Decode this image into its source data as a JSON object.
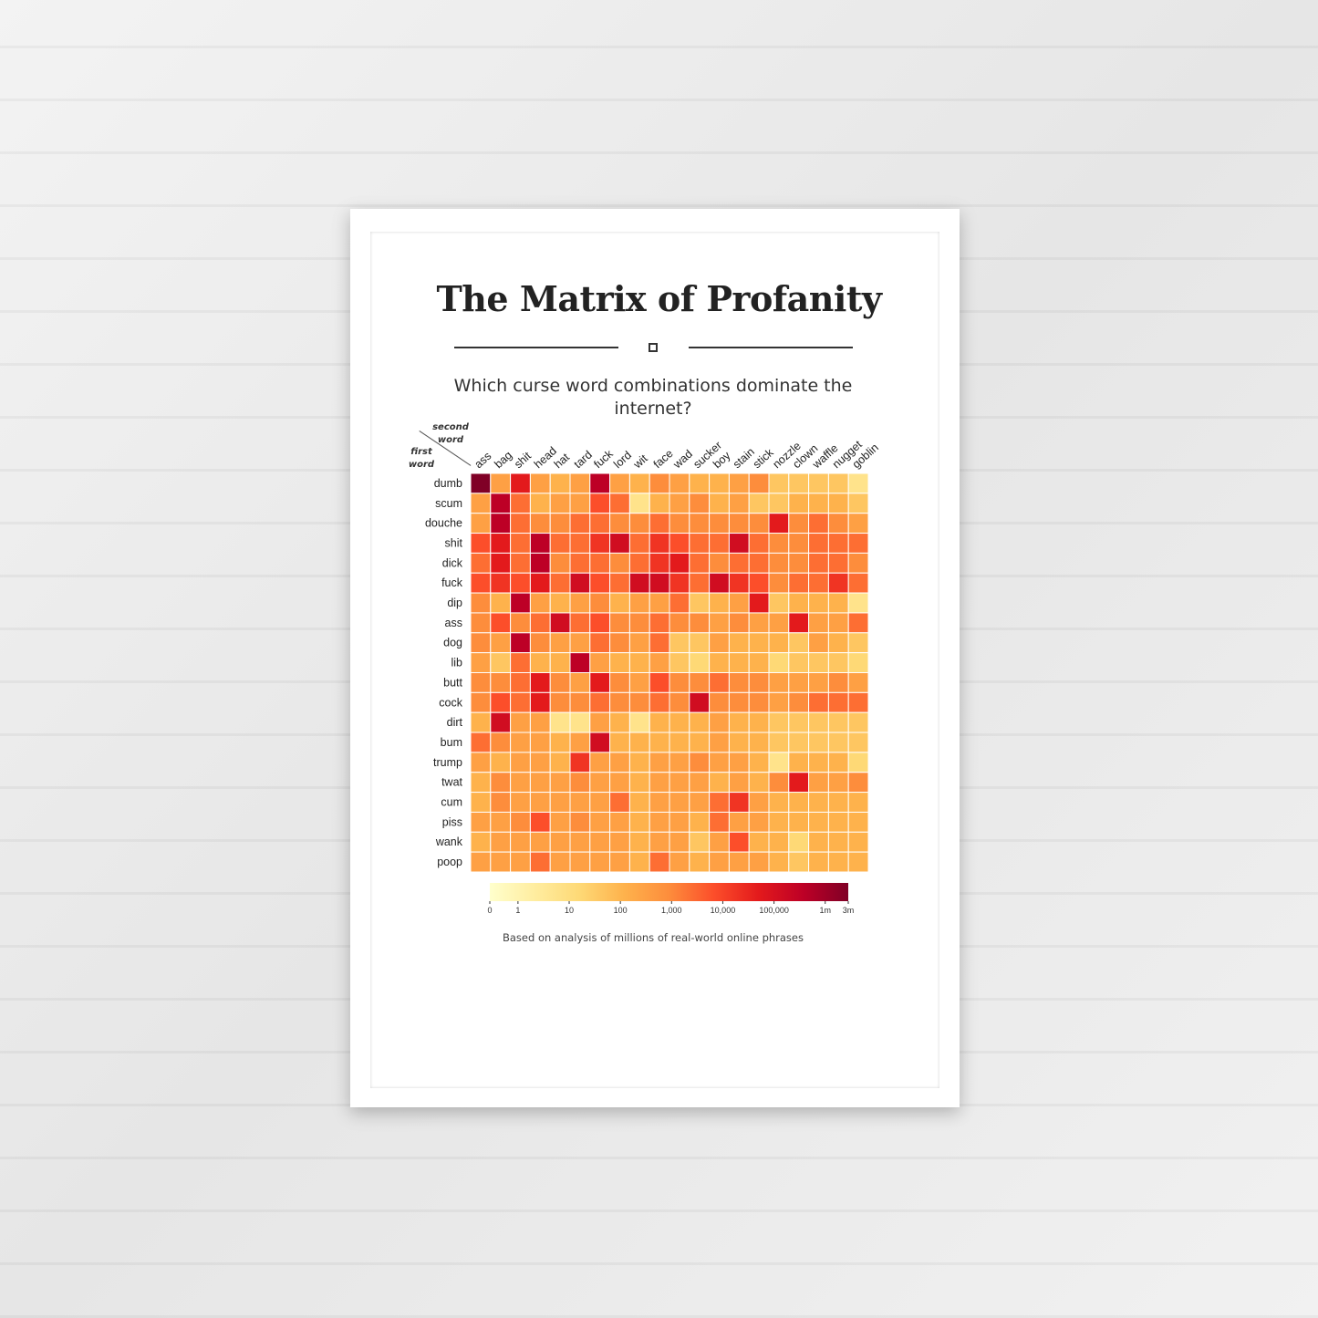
{
  "title": "The Matrix of Profanity",
  "subtitle": "Which curse word combinations dominate the internet?",
  "source_note": "Based on analysis of millions of real-world online phrases",
  "chart_data": {
    "type": "heatmap",
    "corner_label_columns": "second word",
    "corner_label_rows": "first word",
    "columns": [
      "ass",
      "bag",
      "shit",
      "head",
      "hat",
      "tard",
      "fuck",
      "lord",
      "wit",
      "face",
      "wad",
      "sucker",
      "boy",
      "stain",
      "stick",
      "nozzle",
      "clown",
      "waffle",
      "nugget",
      "goblin"
    ],
    "rows": [
      "dumb",
      "scum",
      "douche",
      "shit",
      "dick",
      "fuck",
      "dip",
      "ass",
      "dog",
      "lib",
      "butt",
      "cock",
      "dirt",
      "bum",
      "trump",
      "twat",
      "cum",
      "piss",
      "wank",
      "poop"
    ],
    "value_scale": "log",
    "level_scale": "0-8 (level index along the color legend)",
    "levels": [
      [
        8.0,
        3.5,
        6.0,
        3.5,
        3.0,
        3.5,
        7.0,
        3.5,
        3.0,
        4.0,
        3.5,
        3.0,
        3.0,
        3.5,
        4.0,
        2.5,
        2.5,
        2.5,
        2.5,
        1.5
      ],
      [
        3.5,
        7.0,
        4.5,
        3.0,
        3.5,
        3.5,
        5.0,
        4.5,
        1.5,
        3.0,
        3.5,
        4.0,
        3.0,
        3.5,
        2.5,
        2.5,
        3.0,
        3.0,
        3.0,
        2.5
      ],
      [
        3.5,
        7.0,
        4.5,
        4.0,
        4.0,
        4.5,
        4.5,
        4.0,
        4.0,
        4.5,
        4.0,
        4.0,
        4.0,
        4.0,
        4.0,
        6.0,
        4.0,
        4.5,
        4.0,
        3.5
      ],
      [
        5.0,
        6.0,
        4.5,
        7.0,
        4.5,
        4.5,
        5.5,
        6.5,
        4.5,
        5.5,
        5.0,
        4.5,
        4.5,
        6.5,
        4.5,
        4.0,
        4.0,
        4.5,
        4.5,
        4.5
      ],
      [
        4.5,
        6.0,
        4.5,
        7.0,
        4.0,
        4.5,
        4.5,
        4.0,
        4.5,
        5.5,
        6.0,
        4.5,
        4.0,
        4.5,
        4.5,
        4.0,
        4.0,
        4.5,
        4.5,
        4.0
      ],
      [
        5.0,
        5.5,
        5.0,
        6.0,
        4.5,
        6.5,
        5.0,
        4.5,
        6.5,
        6.5,
        5.5,
        4.5,
        6.5,
        5.5,
        5.0,
        4.0,
        4.5,
        4.5,
        5.5,
        4.5
      ],
      [
        4.0,
        3.0,
        7.0,
        3.5,
        3.0,
        3.5,
        4.0,
        3.0,
        3.5,
        3.5,
        4.5,
        2.5,
        3.0,
        3.5,
        6.0,
        2.5,
        3.0,
        3.0,
        3.0,
        1.5
      ],
      [
        4.0,
        5.0,
        4.0,
        4.5,
        6.5,
        4.5,
        5.0,
        4.0,
        4.0,
        4.5,
        4.0,
        4.0,
        3.5,
        4.0,
        3.5,
        3.5,
        6.0,
        3.5,
        3.5,
        4.5
      ],
      [
        4.0,
        3.5,
        7.0,
        4.0,
        3.5,
        3.5,
        4.5,
        4.0,
        3.5,
        4.5,
        2.5,
        2.5,
        3.5,
        3.0,
        3.0,
        3.0,
        2.5,
        3.5,
        3.0,
        2.5
      ],
      [
        3.5,
        2.5,
        4.5,
        3.0,
        3.0,
        7.0,
        3.5,
        3.0,
        3.0,
        3.5,
        2.5,
        2.0,
        3.0,
        3.0,
        3.0,
        2.0,
        2.5,
        2.5,
        2.5,
        2.0
      ],
      [
        4.0,
        4.0,
        4.5,
        6.0,
        4.0,
        3.5,
        6.0,
        4.0,
        3.5,
        5.0,
        4.0,
        4.0,
        4.5,
        4.0,
        4.0,
        3.5,
        3.5,
        3.5,
        4.0,
        3.5
      ],
      [
        4.0,
        5.0,
        4.5,
        6.0,
        4.0,
        4.0,
        4.5,
        4.0,
        4.0,
        4.5,
        4.0,
        6.5,
        4.0,
        4.0,
        4.0,
        3.5,
        4.0,
        4.5,
        4.5,
        4.5
      ],
      [
        3.0,
        6.5,
        3.5,
        3.5,
        1.5,
        1.5,
        3.5,
        3.0,
        1.5,
        3.0,
        3.0,
        3.0,
        3.5,
        3.0,
        3.0,
        2.5,
        2.5,
        2.5,
        2.5,
        2.5
      ],
      [
        4.5,
        4.0,
        3.5,
        3.5,
        3.0,
        3.5,
        6.5,
        3.0,
        3.0,
        3.0,
        3.0,
        3.0,
        3.5,
        3.0,
        3.0,
        2.5,
        2.5,
        2.5,
        2.5,
        2.5
      ],
      [
        3.5,
        3.0,
        3.5,
        3.5,
        3.0,
        5.5,
        3.5,
        3.5,
        3.0,
        3.5,
        3.5,
        4.0,
        3.5,
        3.5,
        3.0,
        1.5,
        3.0,
        3.0,
        3.0,
        2.0
      ],
      [
        3.0,
        4.0,
        3.5,
        3.5,
        3.5,
        4.0,
        3.5,
        3.5,
        3.0,
        3.5,
        3.5,
        3.5,
        3.0,
        3.5,
        3.0,
        4.0,
        6.0,
        3.5,
        3.5,
        4.0
      ],
      [
        3.0,
        4.0,
        3.5,
        3.5,
        3.5,
        3.5,
        3.5,
        4.5,
        3.0,
        3.5,
        3.5,
        3.5,
        4.5,
        5.5,
        3.5,
        3.0,
        3.0,
        3.0,
        3.0,
        3.0
      ],
      [
        3.5,
        3.5,
        4.0,
        5.0,
        3.5,
        4.0,
        3.5,
        3.5,
        3.0,
        3.5,
        3.5,
        3.0,
        4.5,
        3.5,
        3.5,
        3.0,
        3.0,
        3.0,
        3.0,
        3.0
      ],
      [
        3.0,
        3.5,
        3.5,
        3.5,
        3.5,
        3.5,
        3.5,
        3.5,
        3.0,
        3.5,
        3.5,
        2.5,
        3.5,
        5.0,
        3.0,
        3.0,
        2.0,
        3.0,
        3.0,
        3.0
      ],
      [
        3.5,
        3.5,
        3.5,
        4.5,
        3.5,
        3.5,
        3.5,
        3.5,
        3.0,
        4.5,
        3.5,
        3.0,
        3.5,
        3.5,
        3.5,
        3.0,
        2.5,
        3.0,
        3.0,
        3.0
      ]
    ],
    "legend": {
      "ticks": [
        "0",
        "1",
        "10",
        "100",
        "1,000",
        "10,000",
        "100,000",
        "1m",
        "3m"
      ],
      "tick_levels": [
        0,
        0.55,
        1.55,
        2.55,
        3.55,
        4.55,
        5.55,
        6.55,
        7.0
      ]
    },
    "colors": [
      "#ffffcc",
      "#ffeda0",
      "#fed976",
      "#feb24c",
      "#fd8d3c",
      "#fc4e2a",
      "#e31a1c",
      "#bd0026",
      "#800026"
    ],
    "gridlines": false,
    "legend_position": "bottom"
  }
}
